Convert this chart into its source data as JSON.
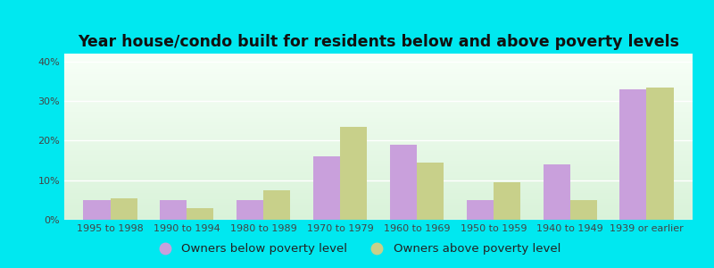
{
  "title": "Year house/condo built for residents below and above poverty levels",
  "categories": [
    "1995 to 1998",
    "1990 to 1994",
    "1980 to 1989",
    "1970 to 1979",
    "1960 to 1969",
    "1950 to 1959",
    "1940 to 1949",
    "1939 or earlier"
  ],
  "below_poverty": [
    5.0,
    5.0,
    5.0,
    16.0,
    19.0,
    5.0,
    14.0,
    33.0
  ],
  "above_poverty": [
    5.5,
    3.0,
    7.5,
    23.5,
    14.5,
    9.5,
    5.0,
    33.5
  ],
  "below_color": "#c9a0dc",
  "above_color": "#c8d08a",
  "ylim": [
    0,
    42
  ],
  "yticks": [
    0,
    10,
    20,
    30,
    40
  ],
  "ytick_labels": [
    "0%",
    "10%",
    "20%",
    "30%",
    "40%"
  ],
  "legend_below": "Owners below poverty level",
  "legend_above": "Owners above poverty level",
  "outer_bg": "#00e8f0",
  "bar_width": 0.35,
  "title_fontsize": 12.5,
  "tick_fontsize": 8.0,
  "legend_fontsize": 9.5
}
